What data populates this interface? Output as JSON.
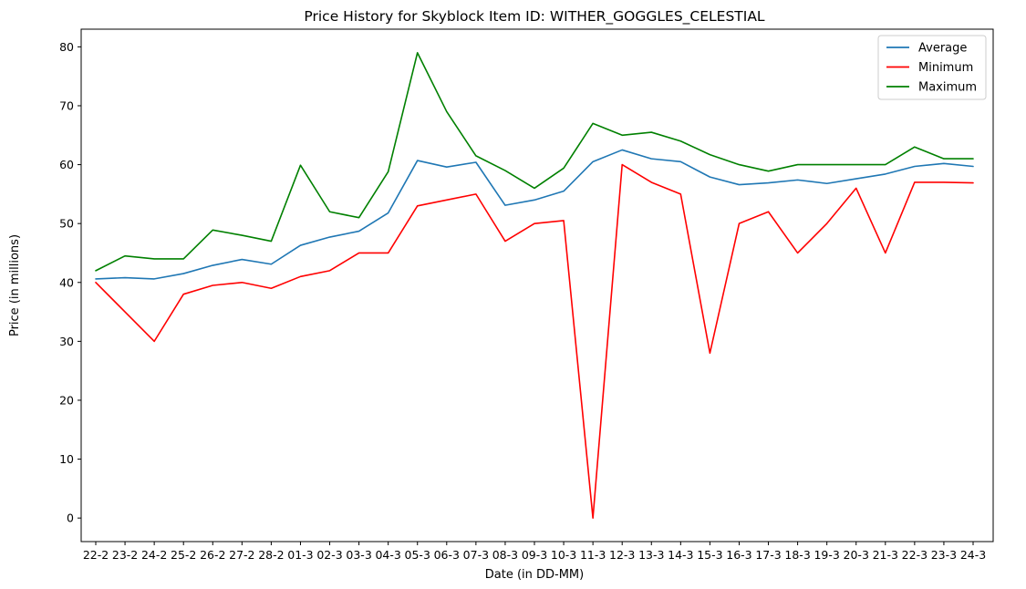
{
  "chart_data": {
    "type": "line",
    "title": "Price History for Skyblock Item ID: WITHER_GOGGLES_CELESTIAL",
    "xlabel": "Date (in DD-MM)",
    "ylabel": "Price (in millions)",
    "categories": [
      "22-2",
      "23-2",
      "24-2",
      "25-2",
      "26-2",
      "27-2",
      "28-2",
      "01-3",
      "02-3",
      "03-3",
      "04-3",
      "05-3",
      "06-3",
      "07-3",
      "08-3",
      "09-3",
      "10-3",
      "11-3",
      "12-3",
      "13-3",
      "14-3",
      "15-3",
      "16-3",
      "17-3",
      "18-3",
      "19-3",
      "20-3",
      "21-3",
      "22-3",
      "23-3",
      "24-3"
    ],
    "ylim": [
      -4,
      83
    ],
    "yticks": [
      0,
      10,
      20,
      30,
      40,
      50,
      60,
      70,
      80
    ],
    "grid": false,
    "legend": "top-right",
    "series": [
      {
        "name": "Average",
        "color": "#1f77b4",
        "values": [
          40.6,
          40.8,
          40.6,
          41.5,
          42.9,
          43.9,
          43.1,
          46.3,
          47.7,
          48.7,
          51.8,
          60.7,
          59.6,
          60.4,
          53.1,
          54.0,
          55.5,
          60.5,
          62.5,
          61.0,
          60.5,
          57.9,
          56.6,
          56.9,
          57.4,
          56.8,
          57.6,
          58.4,
          59.7,
          60.2,
          59.7
        ]
      },
      {
        "name": "Minimum",
        "color": "#ff0000",
        "values": [
          40.0,
          35.0,
          30.0,
          38.0,
          39.5,
          40.0,
          39.0,
          41.0,
          42.0,
          45.0,
          45.0,
          53.0,
          54.0,
          55.0,
          47.0,
          50.0,
          50.5,
          0.0,
          60.0,
          57.0,
          55.0,
          28.0,
          50.0,
          52.0,
          45.0,
          50.0,
          56.0,
          45.0,
          57.0,
          57.0,
          56.9
        ]
      },
      {
        "name": "Maximum",
        "color": "#008000",
        "values": [
          42.0,
          44.5,
          44.0,
          44.0,
          48.9,
          48.0,
          47.0,
          59.9,
          52.0,
          51.0,
          58.8,
          79.0,
          69.0,
          61.5,
          59.0,
          56.0,
          59.4,
          67.0,
          65.0,
          65.5,
          64.0,
          61.7,
          60.0,
          58.9,
          60.0,
          60.0,
          60.0,
          60.0,
          63.0,
          61.0,
          61.0
        ]
      }
    ]
  }
}
